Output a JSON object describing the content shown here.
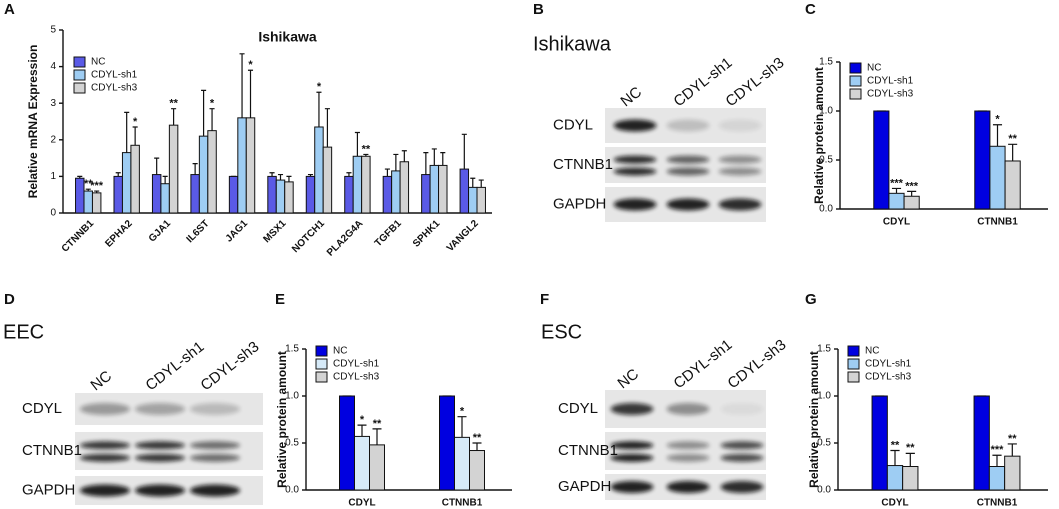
{
  "panel_letters": [
    "A",
    "B",
    "C",
    "D",
    "E",
    "F",
    "G"
  ],
  "chart_data": [
    {
      "type": "bar",
      "title": "Ishikawa",
      "y_label": "Relative mRNA Expression",
      "categories": [
        "CTNNB1",
        "EPHA2",
        "GJA1",
        "IL6ST",
        "JAG1",
        "MSX1",
        "NOTCH1",
        "PLA2G4A",
        "TGFB1",
        "SPHK1",
        "VANGL2"
      ],
      "series": [
        {
          "name": "NC",
          "color": "#5a5ae6",
          "values": [
            0.95,
            1.0,
            1.05,
            1.05,
            1.0,
            1.0,
            1.0,
            1.0,
            1.0,
            1.05,
            1.2
          ],
          "errors": [
            0.05,
            0.1,
            0.45,
            0.3,
            0.0,
            0.1,
            0.05,
            0.1,
            0.2,
            0.6,
            0.95
          ],
          "significance": [
            null,
            null,
            null,
            null,
            null,
            null,
            null,
            null,
            null,
            null,
            null
          ]
        },
        {
          "name": "CDYL-sh1",
          "color": "#9ecdf3",
          "values": [
            0.6,
            1.65,
            0.8,
            2.1,
            2.6,
            0.9,
            2.35,
            1.55,
            1.15,
            1.3,
            0.7
          ],
          "errors": [
            0.05,
            1.1,
            0.2,
            1.25,
            1.75,
            0.15,
            0.95,
            0.65,
            0.45,
            0.45,
            0.25
          ],
          "significance": [
            "**",
            null,
            null,
            null,
            null,
            null,
            "*",
            null,
            null,
            null,
            null
          ]
        },
        {
          "name": "CDYL-sh3",
          "color": "#d3d3d3",
          "values": [
            0.55,
            1.85,
            2.4,
            2.25,
            2.6,
            0.85,
            1.8,
            1.55,
            1.4,
            1.3,
            0.7
          ],
          "errors": [
            0.05,
            0.5,
            0.45,
            0.6,
            1.3,
            0.15,
            1.05,
            0.05,
            0.3,
            0.35,
            0.2
          ],
          "significance": [
            "***",
            "*",
            "**",
            "*",
            "*",
            null,
            null,
            "**",
            null,
            null,
            null
          ]
        }
      ],
      "ylim": [
        0,
        5
      ],
      "yticks": [
        0,
        1,
        2,
        3,
        4,
        5
      ],
      "grid": false,
      "legend": "top-left"
    },
    {
      "type": "bar",
      "y_label": "Relative protein amount",
      "categories": [
        "CDYL",
        "CTNNB1"
      ],
      "series": [
        {
          "name": "NC",
          "color": "#0000e0",
          "values": [
            1,
            1
          ],
          "errors": [
            0,
            0
          ],
          "significance": [
            null,
            null
          ]
        },
        {
          "name": "CDYL-sh1",
          "color": "#9ecdf3",
          "values": [
            0.16,
            0.64
          ],
          "errors": [
            0.05,
            0.22
          ],
          "significance": [
            "***",
            "*"
          ]
        },
        {
          "name": "CDYL-sh3",
          "color": "#d3d3d3",
          "values": [
            0.13,
            0.49
          ],
          "errors": [
            0.05,
            0.17
          ],
          "significance": [
            "***",
            "**"
          ]
        }
      ],
      "ylim": [
        0,
        1.5
      ],
      "yticks": [
        {
          "value": 0,
          "label": "0.0"
        },
        0.5,
        {
          "value": 1,
          "label": "1.0"
        },
        1.5
      ],
      "grid": false,
      "legend": "top-left"
    },
    {
      "type": "bar",
      "y_label": "Relative protein amount",
      "categories": [
        "CDYL",
        "CTNNB1"
      ],
      "series": [
        {
          "name": "NC",
          "color": "#0000e0",
          "values": [
            1,
            1
          ],
          "errors": [
            0,
            0
          ],
          "significance": [
            null,
            null
          ]
        },
        {
          "name": "CDYL-sh1",
          "color": "#d6eaf8",
          "values": [
            0.57,
            0.56
          ],
          "errors": [
            0.12,
            0.22
          ],
          "significance": [
            "*",
            "*"
          ]
        },
        {
          "name": "CDYL-sh3",
          "color": "#d3d3d3",
          "values": [
            0.48,
            0.42
          ],
          "errors": [
            0.17,
            0.08
          ],
          "significance": [
            "**",
            "**"
          ]
        }
      ],
      "ylim": [
        0,
        1.5
      ],
      "yticks": [
        {
          "value": 0,
          "label": "0.0"
        },
        0.5,
        {
          "value": 1,
          "label": "1.0"
        },
        1.5
      ],
      "grid": false,
      "legend": "top-left"
    },
    {
      "type": "bar",
      "y_label": "Relative protein amount",
      "categories": [
        "CDYL",
        "CTNNB1"
      ],
      "series": [
        {
          "name": "NC",
          "color": "#0000e0",
          "values": [
            1,
            1
          ],
          "errors": [
            0,
            0
          ],
          "significance": [
            null,
            null
          ]
        },
        {
          "name": "CDYL-sh1",
          "color": "#9ecdf3",
          "values": [
            0.26,
            0.25
          ],
          "errors": [
            0.16,
            0.12
          ],
          "significance": [
            "**",
            "***"
          ]
        },
        {
          "name": "CDYL-sh3",
          "color": "#d3d3d3",
          "values": [
            0.25,
            0.36
          ],
          "errors": [
            0.14,
            0.13
          ],
          "significance": [
            "**",
            "**"
          ]
        }
      ],
      "ylim": [
        0,
        1.5
      ],
      "yticks": [
        {
          "value": 0,
          "label": "0.0"
        },
        0.5,
        {
          "value": 1,
          "label": "1.0"
        },
        1.5
      ],
      "grid": false,
      "legend": "top-left"
    }
  ],
  "blots": [
    {
      "title": "Ishikawa",
      "lanes": [
        "NC",
        "CDYL-sh1",
        "CDYL-sh3"
      ],
      "rows": [
        "CDYL",
        "CTNNB1",
        "GAPDH"
      ]
    },
    {
      "title": "EEC",
      "lanes": [
        "NC",
        "CDYL-sh1",
        "CDYL-sh3"
      ],
      "rows": [
        "CDYL",
        "CTNNB1",
        "GAPDH"
      ]
    },
    {
      "title": "ESC",
      "lanes": [
        "NC",
        "CDYL-sh1",
        "CDYL-sh3"
      ],
      "rows": [
        "CDYL",
        "CTNNB1",
        "GAPDH"
      ]
    }
  ]
}
